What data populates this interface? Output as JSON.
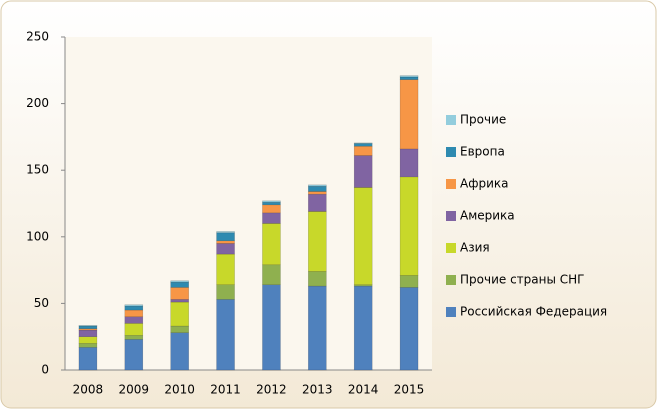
{
  "chart_data": {
    "type": "stacked_bar",
    "categories": [
      "2008",
      "2009",
      "2010",
      "2011",
      "2012",
      "2013",
      "2014",
      "2015"
    ],
    "series": [
      {
        "name": "Российская Федерация",
        "color": "#4f81bd",
        "values": [
          17,
          23,
          28,
          53,
          64,
          63,
          63,
          62
        ]
      },
      {
        "name": "Прочие страны СНГ",
        "color": "#8fb04f",
        "values": [
          3,
          3,
          5,
          11,
          15,
          11,
          1,
          9
        ]
      },
      {
        "name": "Азия",
        "color": "#c8d82a",
        "values": [
          5,
          9,
          18,
          23,
          31,
          45,
          73,
          74
        ]
      },
      {
        "name": "Америка",
        "color": "#8064a2",
        "values": [
          5,
          5,
          2,
          8,
          8,
          13,
          24,
          21
        ]
      },
      {
        "name": "Африка",
        "color": "#f79646",
        "values": [
          1,
          5,
          9,
          2,
          6,
          2,
          7,
          52
        ]
      },
      {
        "name": "Европа",
        "color": "#2e8ab0",
        "values": [
          2,
          3,
          4,
          6,
          2,
          4,
          2,
          2
        ]
      },
      {
        "name": "Прочие",
        "color": "#93cddd",
        "values": [
          0.5,
          1,
          1,
          1,
          1,
          1,
          0.5,
          1
        ]
      }
    ],
    "ylim": [
      0,
      250
    ],
    "yticks": [
      0,
      50,
      100,
      150,
      200,
      250
    ],
    "grid": false
  }
}
